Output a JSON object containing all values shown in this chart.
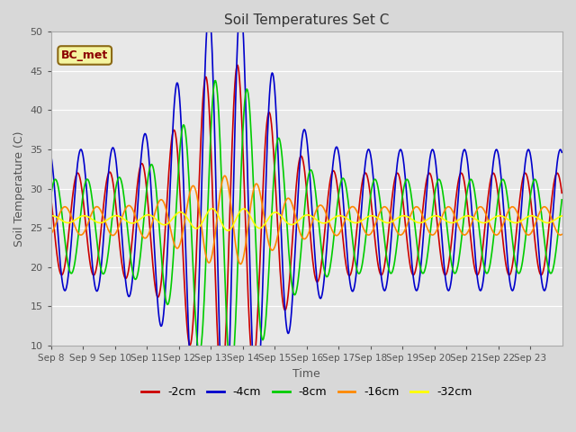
{
  "title": "Soil Temperatures Set C",
  "xlabel": "Time",
  "ylabel": "Soil Temperature (C)",
  "ylim": [
    10,
    50
  ],
  "annotation": "BC_met",
  "series_colors": {
    "-2cm": "#cc0000",
    "-4cm": "#0000cc",
    "-8cm": "#00cc00",
    "-16cm": "#ff8800",
    "-32cm": "#ffff00"
  },
  "xtick_labels": [
    "Sep 8",
    "Sep 9",
    "Sep 10",
    "Sep 11",
    "Sep 12",
    "Sep 13",
    "Sep 14",
    "Sep 15",
    "Sep 16",
    "Sep 17",
    "Sep 18",
    "Sep 19",
    "Sep 20",
    "Sep 21",
    "Sep 22",
    "Sep 23"
  ],
  "n_days": 16,
  "start_day": 8,
  "ytick_labels": [
    "10",
    "15",
    "20",
    "25",
    "30",
    "35",
    "40",
    "45",
    "50"
  ],
  "ytick_values": [
    10,
    15,
    20,
    25,
    30,
    35,
    40,
    45,
    50
  ]
}
